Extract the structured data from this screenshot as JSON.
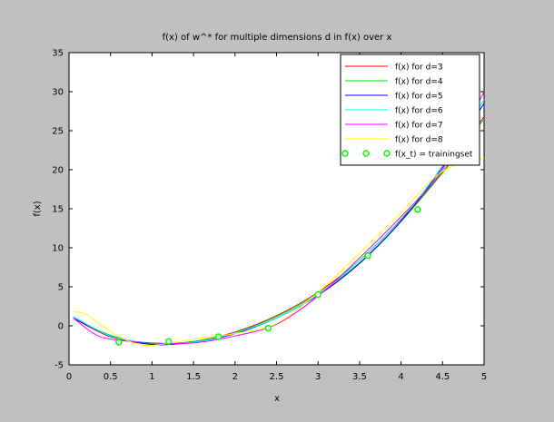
{
  "chart_data": {
    "type": "line",
    "title": "f(x) of w^* for multiple dimensions d in f(x) over x",
    "xlabel": "x",
    "ylabel": "f(x)",
    "xlim": [
      0,
      5
    ],
    "ylim": [
      -5,
      35
    ],
    "xticks": [
      "0",
      "0.5",
      "1",
      "1.5",
      "2",
      "2.5",
      "3",
      "3.5",
      "4",
      "4.5",
      "5"
    ],
    "yticks": [
      "-5",
      "0",
      "5",
      "10",
      "15",
      "20",
      "25",
      "30",
      "35"
    ],
    "grid": false,
    "legend_position": "top-right",
    "background_color": "#c0c0c0",
    "plot_background_color": "#ffffff",
    "series": [
      {
        "name": "f(x) for d=3",
        "color": "#ff0000",
        "x": [
          0.05,
          0.5,
          1.0,
          1.5,
          2.0,
          2.5,
          3.0,
          3.5,
          4.0,
          4.5,
          5.0
        ],
        "y": [
          1.0,
          -1.4,
          -2.3,
          -2.0,
          -0.8,
          1.3,
          4.3,
          8.4,
          13.6,
          19.7,
          26.8
        ]
      },
      {
        "name": "f(x) for d=4",
        "color": "#00dd00",
        "x": [
          0.05,
          0.5,
          1.0,
          1.5,
          2.0,
          2.5,
          3.0,
          3.5,
          4.0,
          4.5,
          5.0
        ],
        "y": [
          1.0,
          -1.2,
          -2.3,
          -2.0,
          -0.9,
          1.2,
          4.1,
          8.1,
          13.4,
          19.6,
          26.5
        ]
      },
      {
        "name": "f(x) for d=5",
        "color": "#0000ff",
        "x": [
          0.05,
          0.5,
          1.0,
          1.5,
          2.0,
          2.5,
          3.0,
          3.5,
          4.0,
          4.5,
          5.0
        ],
        "y": [
          1.0,
          -1.3,
          -2.4,
          -2.1,
          -1.0,
          1.0,
          3.9,
          8.0,
          13.4,
          20.3,
          28.5
        ]
      },
      {
        "name": "f(x) for d=6",
        "color": "#00ffff",
        "x": [
          0.05,
          0.5,
          1.0,
          1.5,
          2.0,
          2.5,
          3.0,
          3.5,
          4.0,
          4.5,
          5.0
        ],
        "y": [
          1.2,
          -1.3,
          -2.2,
          -2.1,
          -0.9,
          1.0,
          4.0,
          8.4,
          13.7,
          20.5,
          29.0
        ]
      },
      {
        "name": "f(x) for d=7",
        "color": "#ff00ff",
        "x": [
          0.05,
          0.3,
          0.5,
          1.0,
          1.5,
          2.0,
          2.5,
          3.0,
          3.5,
          4.0,
          4.5,
          5.0
        ],
        "y": [
          1.0,
          -1.0,
          -1.7,
          -2.2,
          -2.2,
          -1.3,
          0.2,
          3.8,
          8.7,
          14.0,
          20.0,
          30.0
        ]
      },
      {
        "name": "f(x) for d=8",
        "color": "#ffff00",
        "x": [
          0.05,
          0.2,
          0.4,
          0.7,
          1.0,
          1.5,
          2.0,
          2.5,
          3.0,
          3.5,
          4.0,
          4.5,
          5.0
        ],
        "y": [
          1.8,
          1.5,
          0.0,
          -1.9,
          -2.5,
          -1.7,
          -1.0,
          0.3,
          4.3,
          9.3,
          14.5,
          19.8,
          21.5
        ]
      }
    ],
    "training_set": {
      "name": "f(x_t) = trainingset",
      "color": "#00ff00",
      "x": [
        0.6,
        1.2,
        1.8,
        2.4,
        3.0,
        3.6,
        4.2
      ],
      "y": [
        -2.1,
        -2.0,
        -1.4,
        -0.3,
        4.0,
        9.0,
        14.9
      ]
    }
  }
}
